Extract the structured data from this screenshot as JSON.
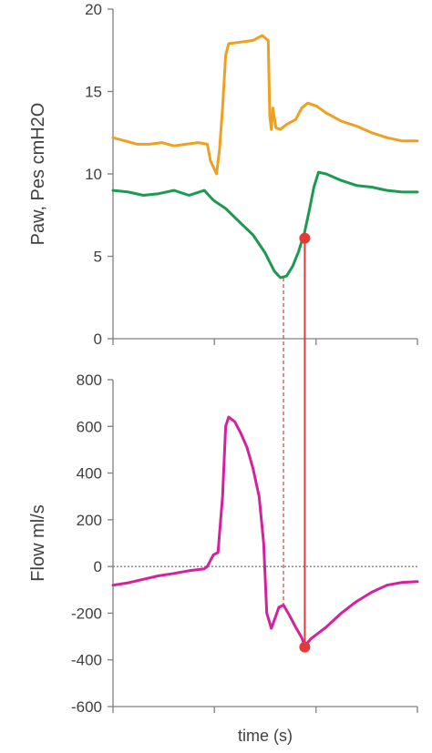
{
  "chart_data": [
    {
      "type": "line",
      "title": "",
      "ylabel": "Paw, Pes cmH2O",
      "xlabel": "",
      "ylim": [
        0,
        20
      ],
      "yticks": [
        "0",
        "5",
        "10",
        "15",
        "20"
      ],
      "xlim": [
        0,
        10
      ],
      "x_tick_positions": [
        0,
        3.33,
        6.67,
        10
      ],
      "grid": false,
      "series": [
        {
          "color": "#f0a020",
          "points": [
            [
              0,
              12.2
            ],
            [
              0.4,
              12.0
            ],
            [
              0.8,
              11.8
            ],
            [
              1.2,
              11.8
            ],
            [
              1.6,
              11.9
            ],
            [
              2.0,
              11.7
            ],
            [
              2.4,
              11.8
            ],
            [
              2.8,
              11.9
            ],
            [
              3.1,
              11.8
            ],
            [
              3.2,
              10.8
            ],
            [
              3.4,
              10.0
            ],
            [
              3.5,
              11.5
            ],
            [
              3.6,
              14.0
            ],
            [
              3.7,
              17.2
            ],
            [
              3.8,
              17.9
            ],
            [
              4.2,
              18.0
            ],
            [
              4.6,
              18.1
            ],
            [
              4.9,
              18.4
            ],
            [
              5.1,
              18.1
            ],
            [
              5.15,
              13.5
            ],
            [
              5.2,
              12.7
            ],
            [
              5.25,
              14.0
            ],
            [
              5.35,
              12.8
            ],
            [
              5.5,
              12.7
            ],
            [
              5.7,
              13.0
            ],
            [
              6.0,
              13.3
            ],
            [
              6.2,
              14.0
            ],
            [
              6.4,
              14.3
            ],
            [
              6.7,
              14.1
            ],
            [
              7.0,
              13.7
            ],
            [
              7.5,
              13.2
            ],
            [
              8.0,
              12.9
            ],
            [
              8.5,
              12.5
            ],
            [
              9.0,
              12.2
            ],
            [
              9.5,
              12.0
            ],
            [
              10.0,
              12.0
            ]
          ]
        },
        {
          "color": "#1a9b50",
          "points": [
            [
              0,
              9.0
            ],
            [
              0.5,
              8.9
            ],
            [
              1.0,
              8.7
            ],
            [
              1.5,
              8.8
            ],
            [
              2.0,
              9.0
            ],
            [
              2.5,
              8.7
            ],
            [
              3.0,
              9.0
            ],
            [
              3.3,
              8.4
            ],
            [
              3.7,
              7.9
            ],
            [
              4.2,
              7.0
            ],
            [
              4.6,
              6.3
            ],
            [
              5.0,
              5.2
            ],
            [
              5.3,
              4.1
            ],
            [
              5.5,
              3.7
            ],
            [
              5.7,
              3.8
            ],
            [
              5.9,
              4.4
            ],
            [
              6.1,
              5.3
            ],
            [
              6.3,
              6.5
            ],
            [
              6.45,
              7.8
            ],
            [
              6.6,
              9.2
            ],
            [
              6.75,
              10.1
            ],
            [
              7.0,
              10.0
            ],
            [
              7.5,
              9.6
            ],
            [
              8.0,
              9.3
            ],
            [
              8.5,
              9.2
            ],
            [
              9.0,
              9.0
            ],
            [
              9.5,
              8.9
            ],
            [
              10.0,
              8.9
            ]
          ]
        }
      ],
      "marker": {
        "x": 6.3,
        "y": 6.1,
        "color": "#e53935"
      },
      "drop_lines": [
        {
          "x": 5.6,
          "style": "dashed",
          "color": "#e53935"
        },
        {
          "x": 6.3,
          "style": "solid",
          "color": "#e53935"
        }
      ]
    },
    {
      "type": "line",
      "title": "",
      "ylabel": "Flow ml/s",
      "xlabel": "time (s)",
      "ylim": [
        -600,
        800
      ],
      "yticks": [
        "-600",
        "-400",
        "-200",
        "0",
        "200",
        "400",
        "600",
        "800"
      ],
      "xlim": [
        0,
        10
      ],
      "x_tick_positions": [
        0,
        3.33,
        6.67,
        10
      ],
      "grid": false,
      "zero_line": {
        "y": 0,
        "style": "dotted",
        "color": "#808080"
      },
      "series": [
        {
          "color": "#d4219e",
          "points": [
            [
              0,
              -80
            ],
            [
              0.5,
              -70
            ],
            [
              1.0,
              -55
            ],
            [
              1.5,
              -40
            ],
            [
              2.0,
              -30
            ],
            [
              2.5,
              -18
            ],
            [
              3.0,
              -10
            ],
            [
              3.1,
              0
            ],
            [
              3.3,
              50
            ],
            [
              3.45,
              60
            ],
            [
              3.6,
              300
            ],
            [
              3.7,
              600
            ],
            [
              3.8,
              640
            ],
            [
              4.0,
              620
            ],
            [
              4.2,
              570
            ],
            [
              4.4,
              510
            ],
            [
              4.6,
              420
            ],
            [
              4.8,
              300
            ],
            [
              4.95,
              100
            ],
            [
              5.05,
              -200
            ],
            [
              5.2,
              -265
            ],
            [
              5.3,
              -230
            ],
            [
              5.45,
              -175
            ],
            [
              5.6,
              -165
            ],
            [
              5.8,
              -210
            ],
            [
              6.0,
              -260
            ],
            [
              6.2,
              -305
            ],
            [
              6.3,
              -340
            ],
            [
              6.5,
              -310
            ],
            [
              7.0,
              -260
            ],
            [
              7.5,
              -200
            ],
            [
              8.0,
              -150
            ],
            [
              8.5,
              -110
            ],
            [
              9.0,
              -80
            ],
            [
              9.5,
              -68
            ],
            [
              10.0,
              -65
            ]
          ]
        }
      ],
      "marker": {
        "x": 6.3,
        "y": -345,
        "color": "#e53935"
      },
      "drop_lines": [
        {
          "x": 5.6,
          "style": "dashed",
          "color": "#e53935"
        },
        {
          "x": 6.3,
          "style": "solid",
          "color": "#e53935"
        }
      ]
    }
  ]
}
